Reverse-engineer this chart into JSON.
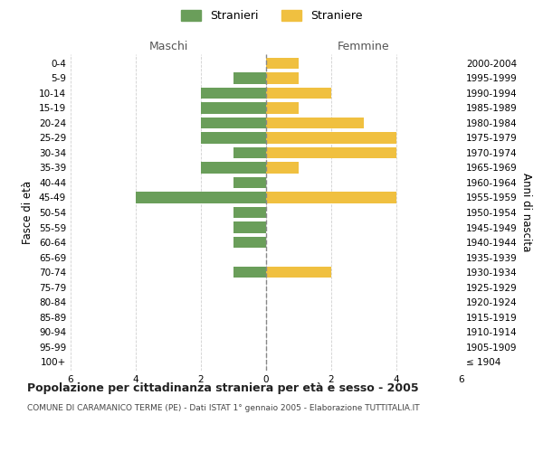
{
  "age_groups": [
    "100+",
    "95-99",
    "90-94",
    "85-89",
    "80-84",
    "75-79",
    "70-74",
    "65-69",
    "60-64",
    "55-59",
    "50-54",
    "45-49",
    "40-44",
    "35-39",
    "30-34",
    "25-29",
    "20-24",
    "15-19",
    "10-14",
    "5-9",
    "0-4"
  ],
  "birth_years": [
    "≤ 1904",
    "1905-1909",
    "1910-1914",
    "1915-1919",
    "1920-1924",
    "1925-1929",
    "1930-1934",
    "1935-1939",
    "1940-1944",
    "1945-1949",
    "1950-1954",
    "1955-1959",
    "1960-1964",
    "1965-1969",
    "1970-1974",
    "1975-1979",
    "1980-1984",
    "1985-1989",
    "1990-1994",
    "1995-1999",
    "2000-2004"
  ],
  "maschi": [
    0,
    0,
    0,
    0,
    0,
    0,
    1,
    0,
    1,
    1,
    1,
    4,
    1,
    2,
    1,
    2,
    2,
    2,
    2,
    1,
    0
  ],
  "femmine": [
    0,
    0,
    0,
    0,
    0,
    0,
    2,
    0,
    0,
    0,
    0,
    4,
    0,
    1,
    4,
    4,
    3,
    1,
    2,
    1,
    1
  ],
  "color_maschi": "#6a9e5a",
  "color_femmine": "#f0c040",
  "title": "Popolazione per cittadinanza straniera per età e sesso - 2005",
  "subtitle": "COMUNE DI CARAMANICO TERME (PE) - Dati ISTAT 1° gennaio 2005 - Elaborazione TUTTITALIA.IT",
  "xlabel_left": "Maschi",
  "xlabel_right": "Femmine",
  "ylabel_left": "Fasce di età",
  "ylabel_right": "Anni di nascita",
  "legend_maschi": "Stranieri",
  "legend_femmine": "Straniere",
  "xlim": 6,
  "background_color": "#ffffff",
  "grid_color": "#d0d0d0",
  "title_fontsize": 9,
  "subtitle_fontsize": 6.5,
  "tick_fontsize": 7.5,
  "label_fontsize": 8.5,
  "header_fontsize": 9
}
